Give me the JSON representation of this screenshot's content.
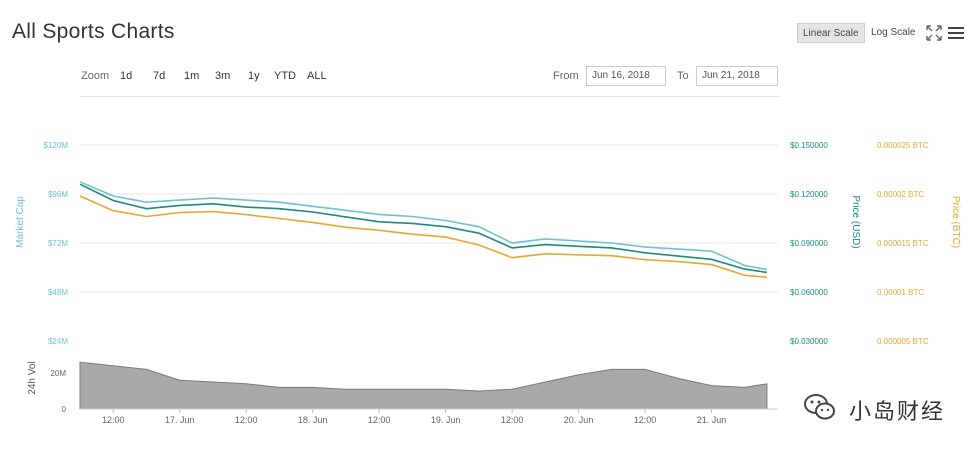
{
  "header": {
    "title": "All Sports Charts",
    "linear_scale_label": "Linear Scale",
    "log_scale_label": "Log Scale",
    "expand_icon": "expand-icon",
    "menu_icon": "hamburger-menu-icon"
  },
  "toolbar": {
    "zoom_label": "Zoom",
    "zoom_options": [
      "1d",
      "7d",
      "1m",
      "3m",
      "1y",
      "YTD",
      "ALL"
    ],
    "from_label": "From",
    "from_value": "Jun 16, 2018",
    "to_label": "To",
    "to_value": "Jun 21, 2018"
  },
  "watermark": {
    "text": "小岛财经",
    "logo_icon": "wechat-logo-icon"
  },
  "colors": {
    "market_cap": "#6cc3cf",
    "price_usd": "#1b8c78",
    "price_btc": "#e8a830",
    "volume": "#7a7a7a",
    "volume_fill": "#a9a9a9"
  },
  "chart_data": {
    "type": "line",
    "title": "All Sports Charts",
    "x": [
      "2018-06-16T06:00",
      "2018-06-16T12:00",
      "2018-06-16T18:00",
      "2018-06-17T00:00",
      "2018-06-17T06:00",
      "2018-06-17T12:00",
      "2018-06-17T18:00",
      "2018-06-18T00:00",
      "2018-06-18T06:00",
      "2018-06-18T12:00",
      "2018-06-18T18:00",
      "2018-06-19T00:00",
      "2018-06-19T06:00",
      "2018-06-19T12:00",
      "2018-06-19T18:00",
      "2018-06-20T00:00",
      "2018-06-20T06:00",
      "2018-06-20T12:00",
      "2018-06-20T18:00",
      "2018-06-21T00:00",
      "2018-06-21T06:00",
      "2018-06-21T10:00"
    ],
    "x_tick_labels": [
      "12:00",
      "17. Jun",
      "12:00",
      "18. Jun",
      "12:00",
      "19. Jun",
      "12:00",
      "20. Jun",
      "12:00",
      "21. Jun"
    ],
    "axes": {
      "market_cap": {
        "label": "Market Cap",
        "ticks": [
          "$120M",
          "$96M",
          "$72M",
          "$48M",
          "$24M"
        ],
        "range": [
          24,
          120
        ],
        "unit": "$M"
      },
      "price_usd": {
        "label": "Price (USD)",
        "ticks": [
          "$0.150000",
          "$0.120000",
          "$0.090000",
          "$0.060000",
          "$0.030000"
        ],
        "range": [
          0.03,
          0.15
        ]
      },
      "price_btc": {
        "label": "Price (BTC)",
        "ticks": [
          "0.000025 BTC",
          "0.00002 BTC",
          "0.000015 BTC",
          "0.00001 BTC",
          "0.000005 BTC"
        ],
        "range": [
          5e-06,
          2.5e-05
        ]
      },
      "volume": {
        "label": "24h Vol",
        "ticks": [
          "20M",
          "0"
        ],
        "range": [
          0,
          30
        ]
      }
    },
    "series": [
      {
        "name": "Market Cap",
        "axis": "market_cap",
        "values": [
          102,
          95,
          92,
          93,
          94,
          93,
          92,
          90,
          88,
          86,
          85,
          83,
          80,
          72,
          74,
          73,
          72,
          70,
          69,
          68,
          61,
          59
        ]
      },
      {
        "name": "Price (USD)",
        "axis": "price_usd",
        "values": [
          0.126,
          0.116,
          0.111,
          0.113,
          0.114,
          0.112,
          0.111,
          0.109,
          0.106,
          0.103,
          0.102,
          0.1,
          0.096,
          0.087,
          0.089,
          0.088,
          0.087,
          0.084,
          0.082,
          0.08,
          0.074,
          0.072
        ]
      },
      {
        "name": "Price (BTC)",
        "axis": "price_btc",
        "values": [
          1.98e-05,
          1.83e-05,
          1.77e-05,
          1.81e-05,
          1.82e-05,
          1.79e-05,
          1.75e-05,
          1.71e-05,
          1.66e-05,
          1.63e-05,
          1.59e-05,
          1.56e-05,
          1.48e-05,
          1.35e-05,
          1.39e-05,
          1.38e-05,
          1.37e-05,
          1.33e-05,
          1.31e-05,
          1.28e-05,
          1.17e-05,
          1.15e-05
        ]
      },
      {
        "name": "24h Vol",
        "axis": "volume",
        "values": [
          26,
          24,
          22,
          16,
          15,
          14,
          12,
          12,
          11,
          11,
          11,
          11,
          10,
          11,
          15,
          19,
          22,
          22,
          17,
          13,
          12,
          14
        ]
      }
    ],
    "grid": true
  }
}
